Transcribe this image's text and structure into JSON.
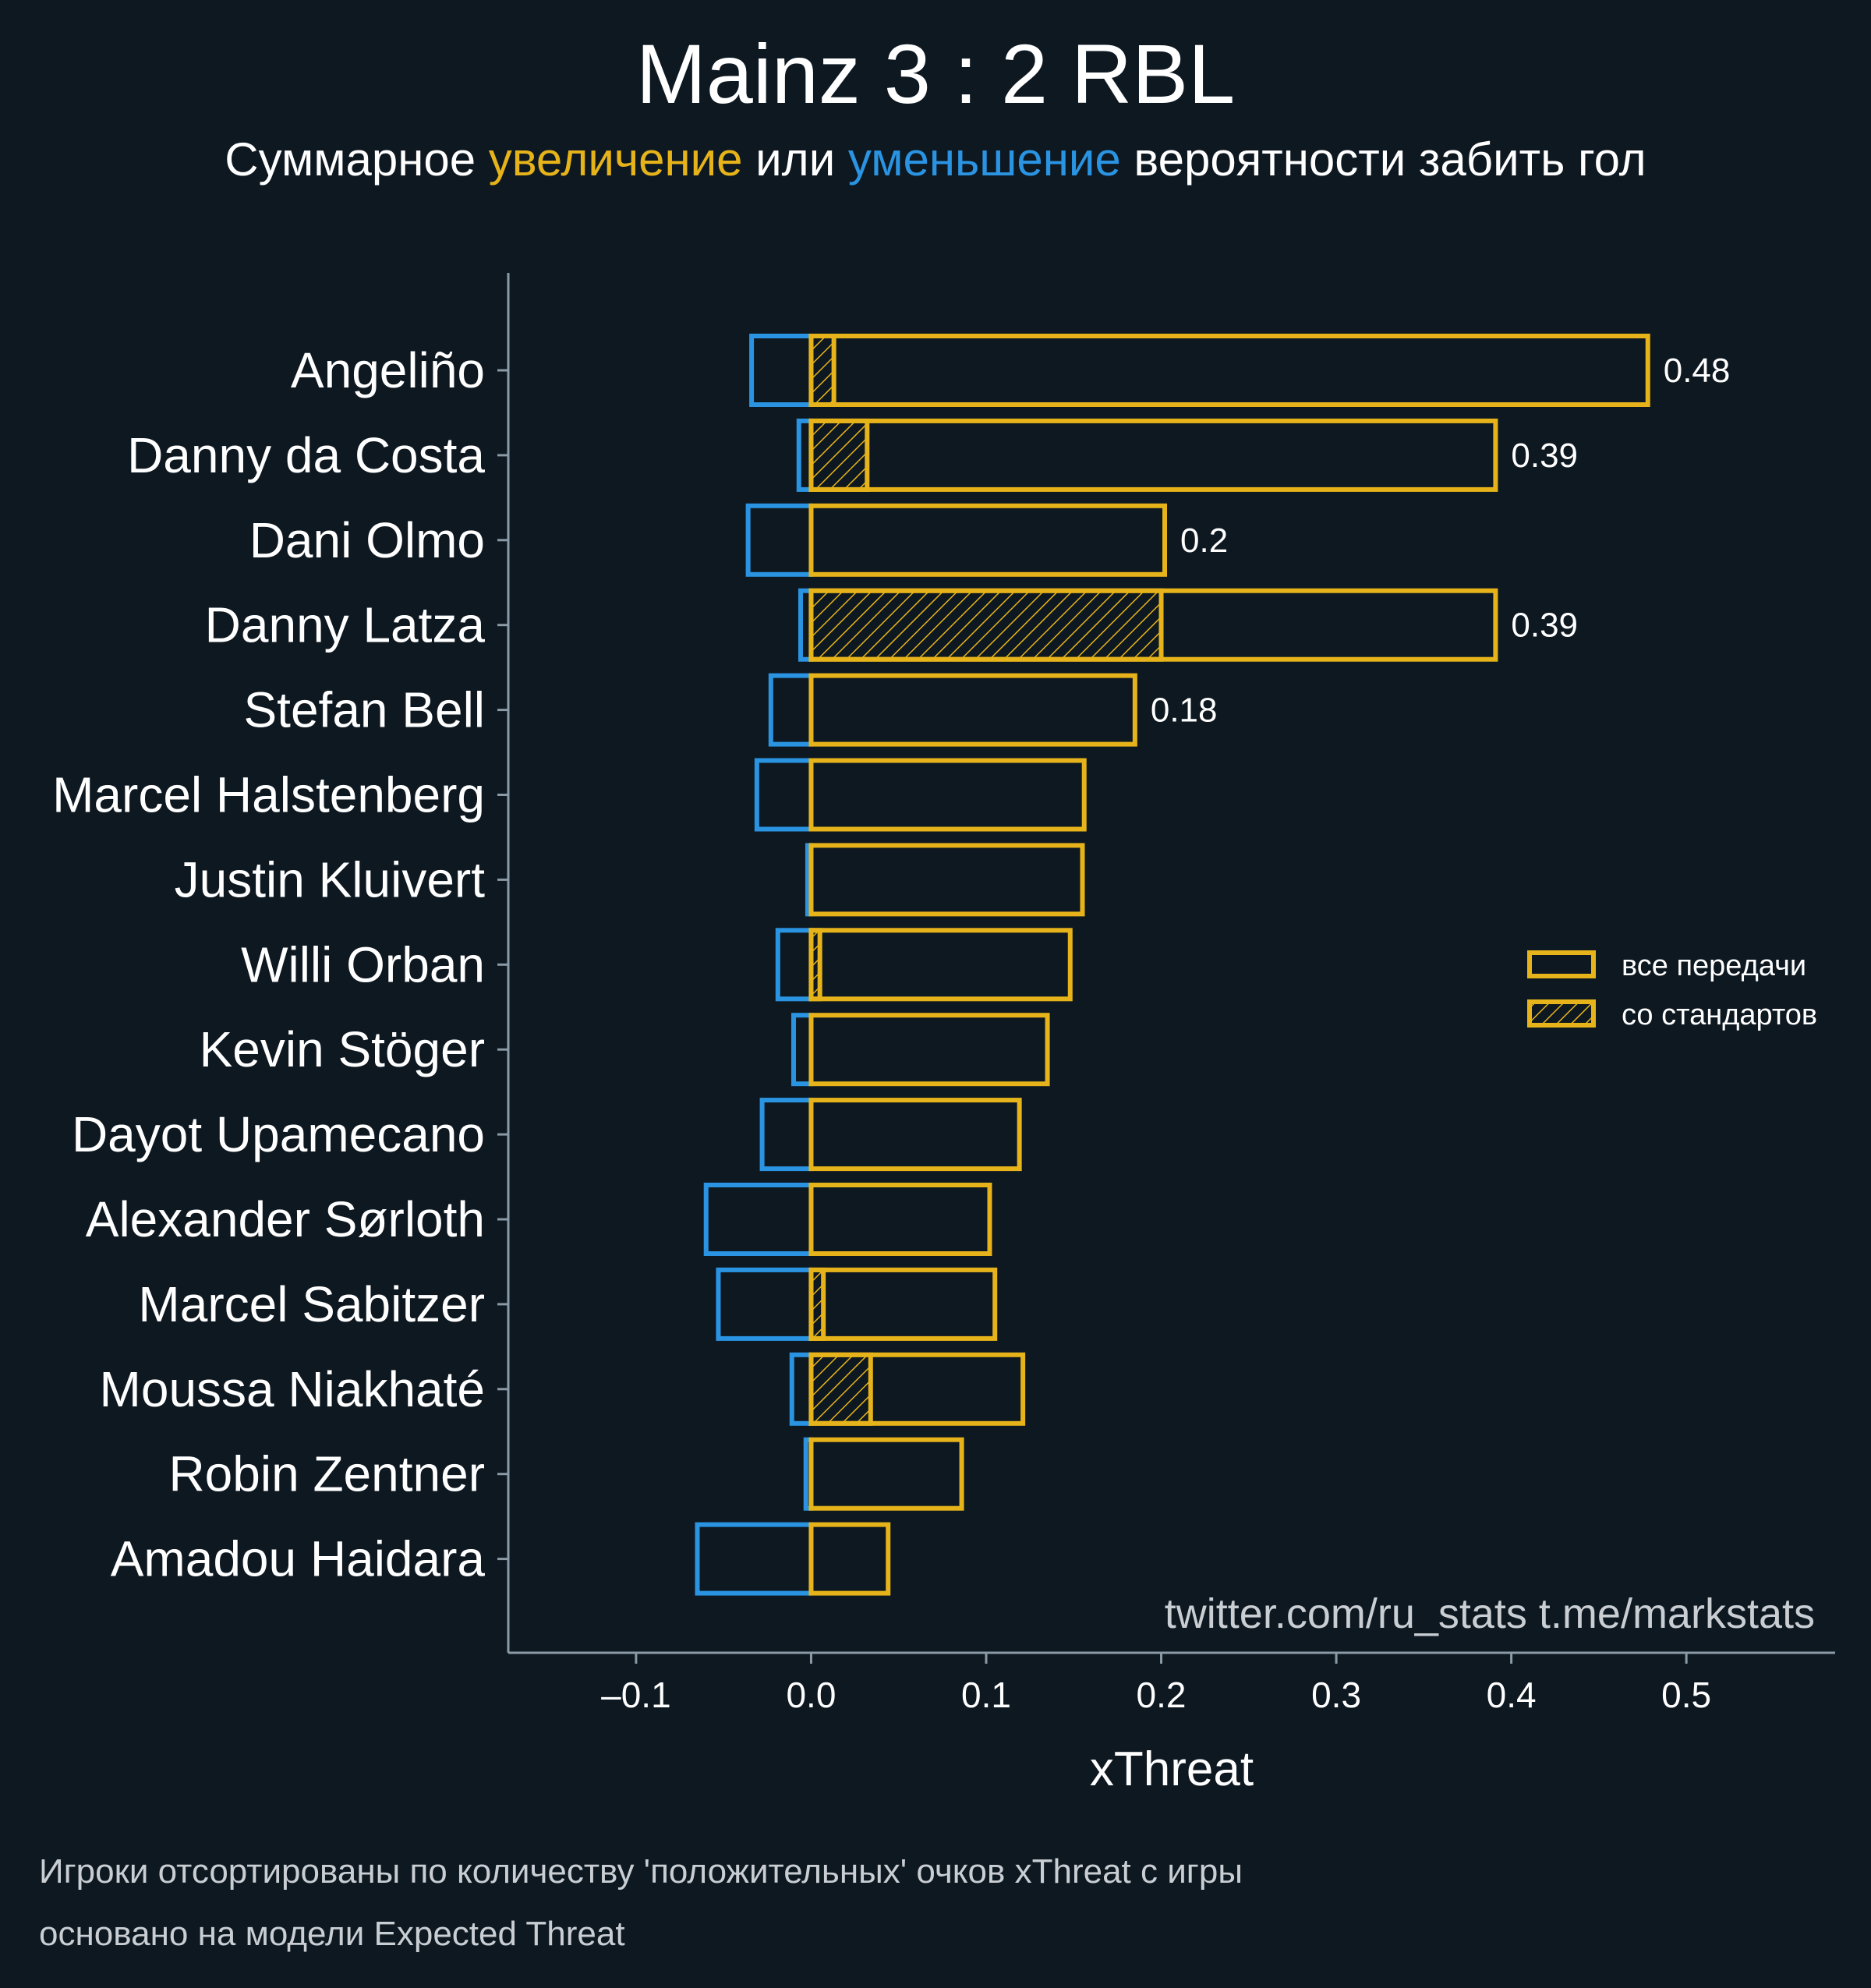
{
  "header": {
    "title": "Mainz 3 : 2 RBL",
    "subtitle_part1": "Суммарное ",
    "subtitle_pos": "увеличение",
    "subtitle_part2": " или ",
    "subtitle_neg": "уменьшение",
    "subtitle_part3": " вероятности забить гол"
  },
  "watermark": "twitter.com/ru_stats  t.me/markstats",
  "footnotes": [
    "Игроки отсортированы по количеству 'положительных' очков xThreat с игры",
    "основано на модели Expected Threat"
  ],
  "colors": {
    "background": "#0e1821",
    "positive": "#e6b41a",
    "negative": "#2a94e2",
    "axis": "#8a9aa6",
    "text": "#ffffff"
  },
  "chart_data": {
    "type": "bar",
    "orientation": "horizontal",
    "xlabel": "xThreat",
    "xlim": [
      -0.173,
      0.585
    ],
    "xticks": [
      -0.1,
      0.0,
      0.1,
      0.2,
      0.3,
      0.4,
      0.5
    ],
    "xtick_labels": [
      "–0.1",
      "0.0",
      "0.1",
      "0.2",
      "0.3",
      "0.4",
      "0.5"
    ],
    "categories": [
      "Angeliño",
      "Danny da Costa",
      "Dani Olmo",
      "Danny Latza",
      "Stefan Bell",
      "Marcel Halstenberg",
      "Justin Kluivert",
      "Willi Orban",
      "Kevin Stöger",
      "Dayot Upamecano",
      "Alexander Sørloth",
      "Marcel Sabitzer",
      "Moussa Niakhaté",
      "Robin Zentner",
      "Amadou Haidara"
    ],
    "series": [
      {
        "name": "все передачи",
        "values": [
          0.478,
          0.391,
          0.202,
          0.391,
          0.185,
          0.156,
          0.155,
          0.148,
          0.135,
          0.119,
          0.102,
          0.105,
          0.121,
          0.086,
          0.044
        ]
      },
      {
        "name": "со стандартов",
        "values": [
          0.013,
          0.032,
          0.0,
          0.2,
          0.0,
          0.0,
          0.0,
          0.005,
          0.0,
          0.0,
          0.0,
          0.007,
          0.034,
          0.0,
          0.0
        ]
      },
      {
        "name": "",
        "values": [
          -0.034,
          -0.007,
          -0.036,
          -0.006,
          -0.023,
          -0.031,
          -0.002,
          -0.019,
          -0.01,
          -0.028,
          -0.06,
          -0.053,
          -0.011,
          -0.003,
          -0.065
        ]
      }
    ],
    "data_labels": [
      "0.48",
      "0.39",
      "0.2",
      "0.39",
      "0.18",
      "",
      "",
      "",
      "",
      "",
      "",
      "",
      "",
      "",
      ""
    ],
    "legend_position": "right",
    "grid": false
  }
}
